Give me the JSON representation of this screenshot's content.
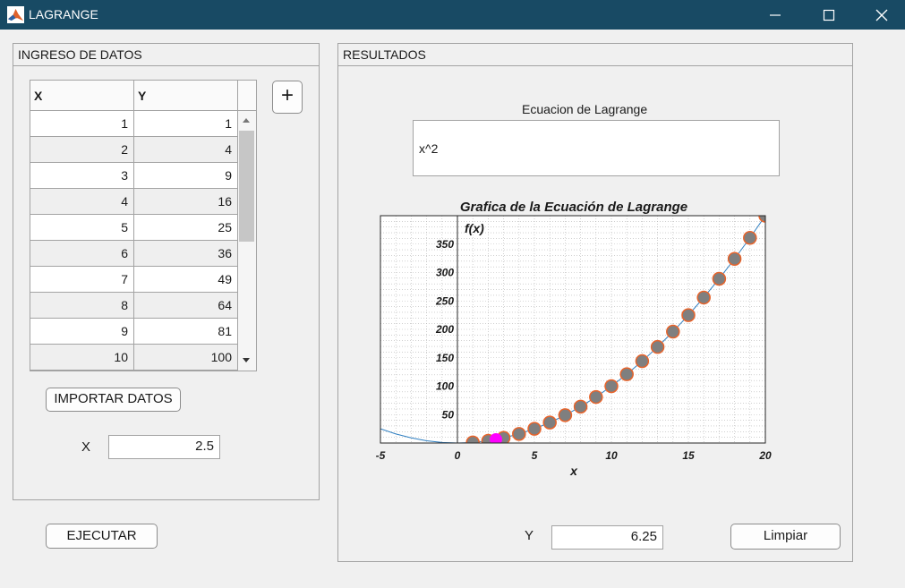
{
  "window": {
    "title": "LAGRANGE"
  },
  "ingreso": {
    "title": "INGRESO DE DATOS",
    "table": {
      "headers": [
        "X",
        "Y"
      ],
      "rows": [
        [
          "1",
          "1"
        ],
        [
          "2",
          "4"
        ],
        [
          "3",
          "9"
        ],
        [
          "4",
          "16"
        ],
        [
          "5",
          "25"
        ],
        [
          "6",
          "36"
        ],
        [
          "7",
          "49"
        ],
        [
          "8",
          "64"
        ],
        [
          "9",
          "81"
        ],
        [
          "10",
          "100"
        ]
      ]
    },
    "add_label": "+",
    "import_label": "IMPORTAR DATOS",
    "x_label": "X",
    "x_value": "2.5"
  },
  "execute_label": "EJECUTAR",
  "resultados": {
    "title": "RESULTADOS",
    "equation_label": "Ecuacion de Lagrange",
    "equation_value": "x^2",
    "y_label": "Y",
    "y_value": "6.25",
    "clear_label": "Limpiar"
  },
  "chart_data": {
    "type": "scatter",
    "title": "Grafica de la Ecuación de Lagrange",
    "xlabel": "x",
    "ylabel": "f(x)",
    "xlim": [
      -5,
      20
    ],
    "ylim": [
      0,
      400
    ],
    "xticks": [
      -5,
      0,
      5,
      10,
      15,
      20
    ],
    "yticks": [
      50,
      100,
      150,
      200,
      250,
      300,
      350
    ],
    "grid": true,
    "series": [
      {
        "type": "line",
        "x": [
          -5,
          -4,
          -3,
          -2,
          -1,
          0,
          1,
          2,
          3,
          4,
          5,
          6,
          7,
          8,
          9,
          10,
          11,
          12,
          13,
          14,
          15,
          16,
          17,
          18,
          19,
          20
        ],
        "values": [
          25,
          16,
          9,
          4,
          1,
          0,
          1,
          4,
          9,
          16,
          25,
          36,
          49,
          64,
          81,
          100,
          121,
          144,
          169,
          196,
          225,
          256,
          289,
          324,
          361,
          400
        ],
        "color": "#2f7fc1"
      },
      {
        "type": "scatter",
        "x": [
          1,
          2,
          3,
          4,
          5,
          6,
          7,
          8,
          9,
          10,
          11,
          12,
          13,
          14,
          15,
          16,
          17,
          18,
          19,
          20
        ],
        "values": [
          1,
          4,
          9,
          16,
          25,
          36,
          49,
          64,
          81,
          100,
          121,
          144,
          169,
          196,
          225,
          256,
          289,
          324,
          361,
          400
        ],
        "color": "#7f7f7f",
        "edge_color": "#e8632a"
      },
      {
        "type": "scatter",
        "x": [
          2.5
        ],
        "values": [
          6.25
        ],
        "color": "#ff00ff"
      }
    ]
  }
}
